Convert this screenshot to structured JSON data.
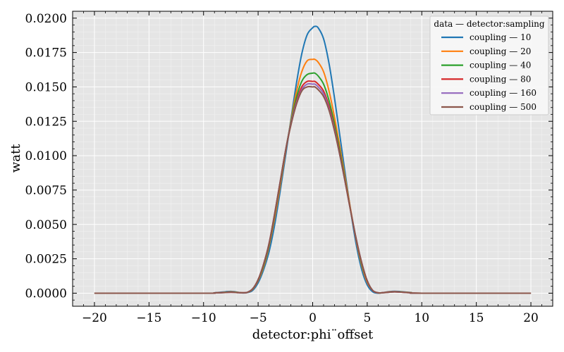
{
  "chart_data": {
    "type": "line",
    "title": "",
    "xlabel": "detector:phi¨offset",
    "ylabel": "watt",
    "xlim": [
      -22,
      22
    ],
    "ylim": [
      -0.00095,
      0.0205
    ],
    "xticks": [
      -20,
      -15,
      -10,
      -5,
      0,
      5,
      10,
      15,
      20
    ],
    "xtick_labels": [
      "−20",
      "−15",
      "−10",
      "−5",
      "0",
      "5",
      "10",
      "15",
      "20"
    ],
    "yticks": [
      0.0,
      0.0025,
      0.005,
      0.0075,
      0.01,
      0.0125,
      0.015,
      0.0175,
      0.02
    ],
    "ytick_labels": [
      "0.0000",
      "0.0025",
      "0.0050",
      "0.0075",
      "0.0100",
      "0.0125",
      "0.0150",
      "0.0175",
      "0.0200"
    ],
    "grid": true,
    "legend": {
      "title": "data — detector:sampling",
      "placement": "top-right"
    },
    "background": "#e5e5e5",
    "x": [
      -20,
      -10,
      -9,
      -8,
      -7.5,
      -7,
      -6.5,
      -6,
      -5.5,
      -5,
      -4.5,
      -4,
      -3.5,
      -3,
      -2.5,
      -2,
      -1.5,
      -1,
      -0.5,
      0,
      0.2,
      0.5,
      1,
      1.5,
      2,
      2.5,
      3,
      3.5,
      4,
      4.5,
      5,
      5.5,
      6,
      6.5,
      7,
      7.5,
      8,
      9,
      10,
      20
    ],
    "series": [
      {
        "name": "coupling — 10",
        "color": "#1f77b4",
        "values": [
          0,
          0,
          3e-05,
          0.0001,
          0.00013,
          9e-05,
          2e-05,
          4e-05,
          0.0002,
          0.00075,
          0.0017,
          0.003,
          0.0049,
          0.0073,
          0.0099,
          0.0126,
          0.0152,
          0.0174,
          0.0188,
          0.0193,
          0.0194,
          0.0193,
          0.0185,
          0.0167,
          0.0142,
          0.0114,
          0.0086,
          0.0059,
          0.0035,
          0.0017,
          0.0006,
          0.0001,
          0,
          5e-05,
          0.00011,
          0.00014,
          0.00012,
          5e-05,
          0,
          0
        ]
      },
      {
        "name": "coupling — 20",
        "color": "#ff7f0e",
        "values": [
          0,
          0,
          2e-05,
          7e-05,
          0.0001,
          7e-05,
          3e-05,
          5e-05,
          0.00028,
          0.0009,
          0.0019,
          0.0034,
          0.0054,
          0.0077,
          0.0102,
          0.0125,
          0.0146,
          0.0161,
          0.0169,
          0.017,
          0.017,
          0.0168,
          0.0161,
          0.0147,
          0.0128,
          0.0106,
          0.0083,
          0.006,
          0.0038,
          0.002,
          0.0008,
          0.0002,
          2e-05,
          4e-05,
          9e-05,
          0.00011,
          0.0001,
          4e-05,
          0,
          0
        ]
      },
      {
        "name": "coupling — 40",
        "color": "#2ca02c",
        "values": [
          0,
          0,
          2e-05,
          6e-05,
          8e-05,
          6e-05,
          3e-05,
          6e-05,
          0.0003,
          0.00095,
          0.002,
          0.0035,
          0.0056,
          0.0079,
          0.0103,
          0.0124,
          0.0142,
          0.0154,
          0.0159,
          0.016,
          0.016,
          0.0158,
          0.0152,
          0.014,
          0.0123,
          0.0103,
          0.0081,
          0.0059,
          0.0039,
          0.0021,
          0.0009,
          0.0002,
          3e-05,
          4e-05,
          8e-05,
          0.0001,
          9e-05,
          4e-05,
          0,
          0
        ]
      },
      {
        "name": "coupling — 80",
        "color": "#d62728",
        "values": [
          0,
          0,
          2e-05,
          5e-05,
          7e-05,
          5e-05,
          3e-05,
          6e-05,
          0.00031,
          0.00097,
          0.0021,
          0.0036,
          0.0057,
          0.008,
          0.0103,
          0.0123,
          0.0139,
          0.015,
          0.0154,
          0.0154,
          0.0154,
          0.0152,
          0.0147,
          0.0136,
          0.012,
          0.0101,
          0.008,
          0.0059,
          0.0039,
          0.0022,
          0.0009,
          0.0002,
          3e-05,
          4e-05,
          8e-05,
          0.0001,
          8e-05,
          3e-05,
          0,
          0
        ]
      },
      {
        "name": "coupling — 160",
        "color": "#9467bd",
        "values": [
          0,
          0,
          2e-05,
          5e-05,
          7e-05,
          5e-05,
          3e-05,
          6e-05,
          0.00032,
          0.00098,
          0.0021,
          0.0036,
          0.0057,
          0.008,
          0.0103,
          0.0123,
          0.0138,
          0.0148,
          0.0152,
          0.0152,
          0.0152,
          0.015,
          0.0145,
          0.0134,
          0.0119,
          0.01,
          0.008,
          0.0059,
          0.0039,
          0.0022,
          0.0009,
          0.0002,
          3e-05,
          4e-05,
          7e-05,
          9e-05,
          8e-05,
          3e-05,
          0,
          0
        ]
      },
      {
        "name": "coupling — 500",
        "color": "#8c564b",
        "values": [
          0,
          0,
          2e-05,
          5e-05,
          7e-05,
          5e-05,
          3e-05,
          6e-05,
          0.00032,
          0.00099,
          0.0021,
          0.0036,
          0.0057,
          0.008,
          0.0103,
          0.0122,
          0.0137,
          0.0147,
          0.015,
          0.015,
          0.015,
          0.0148,
          0.0143,
          0.0133,
          0.0118,
          0.01,
          0.008,
          0.0059,
          0.0039,
          0.0022,
          0.0009,
          0.0002,
          3e-05,
          4e-05,
          7e-05,
          9e-05,
          8e-05,
          3e-05,
          0,
          0
        ]
      }
    ]
  }
}
